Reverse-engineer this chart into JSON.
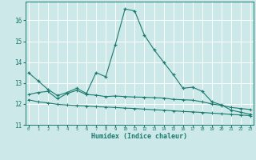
{
  "xlabel": "Humidex (Indice chaleur)",
  "bg_color": "#cce8e8",
  "grid_color": "#ffffff",
  "line_color": "#1a7a6e",
  "xlim": [
    -0.3,
    23.3
  ],
  "ylim": [
    11,
    16.9
  ],
  "yticks": [
    11,
    12,
    13,
    14,
    15,
    16
  ],
  "xticks": [
    0,
    1,
    2,
    3,
    4,
    5,
    6,
    7,
    8,
    9,
    10,
    11,
    12,
    13,
    14,
    15,
    16,
    17,
    18,
    19,
    20,
    21,
    22,
    23
  ],
  "line1_x": [
    0,
    1,
    2,
    3,
    4,
    5,
    6,
    7,
    8,
    9,
    10,
    11,
    12,
    13,
    14,
    15,
    16,
    17,
    18,
    19,
    20,
    21,
    22,
    23
  ],
  "line1_y": [
    13.5,
    13.1,
    12.7,
    12.4,
    12.55,
    12.75,
    12.5,
    13.5,
    13.3,
    14.85,
    16.55,
    16.45,
    15.3,
    14.6,
    14.0,
    13.4,
    12.75,
    12.8,
    12.6,
    12.1,
    11.95,
    11.7,
    11.6,
    11.5
  ],
  "line2_x": [
    0,
    1,
    2,
    3,
    4,
    5,
    6,
    7,
    8,
    9,
    10,
    11,
    12,
    13,
    14,
    15,
    16,
    17,
    18,
    19,
    20,
    21,
    22,
    23
  ],
  "line2_y": [
    12.45,
    12.55,
    12.6,
    12.25,
    12.5,
    12.65,
    12.45,
    12.42,
    12.35,
    12.38,
    12.35,
    12.33,
    12.32,
    12.3,
    12.28,
    12.22,
    12.2,
    12.18,
    12.1,
    12.0,
    11.93,
    11.83,
    11.78,
    11.73
  ],
  "line3_x": [
    0,
    1,
    2,
    3,
    4,
    5,
    6,
    7,
    8,
    9,
    10,
    11,
    12,
    13,
    14,
    15,
    16,
    17,
    18,
    19,
    20,
    21,
    22,
    23
  ],
  "line3_y": [
    12.2,
    12.1,
    12.05,
    11.98,
    11.95,
    11.92,
    11.9,
    11.87,
    11.85,
    11.83,
    11.8,
    11.78,
    11.75,
    11.72,
    11.7,
    11.67,
    11.64,
    11.62,
    11.59,
    11.56,
    11.53,
    11.5,
    11.47,
    11.44
  ]
}
